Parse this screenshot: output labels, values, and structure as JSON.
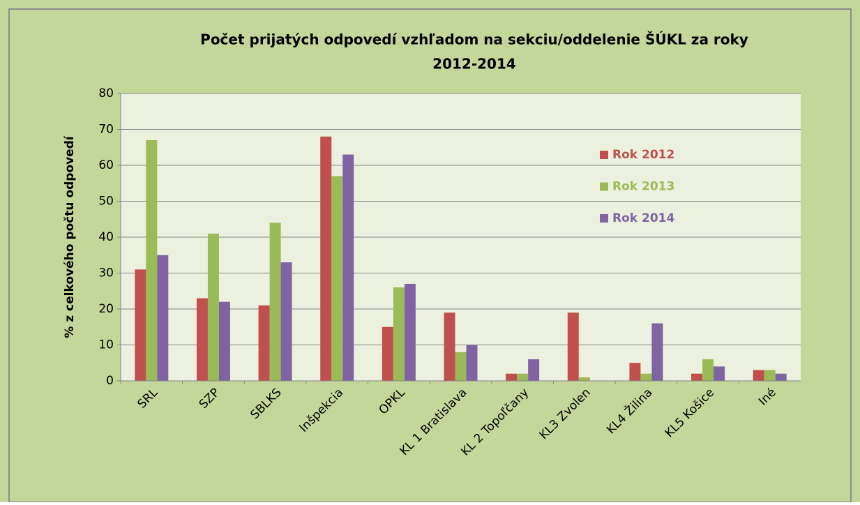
{
  "chart_data": {
    "type": "bar",
    "title": [
      "Počet prijatých odpovedí vzhľadom na sekciu/oddelenie ŠÚKL za roky",
      "2012-2014"
    ],
    "y_label": "% z celkového počtu odpovedí",
    "categories": [
      "SRL",
      "SZP",
      "SBLKS",
      "Inšpekcia",
      "OPKL",
      "KL 1 Bratislava",
      "KL 2 Topoľčany",
      "KL3 Zvolen",
      "KL4 Žilina",
      "KL5 Košice",
      "Iné"
    ],
    "series": [
      {
        "name": "Rok 2012",
        "color": "#c0504d",
        "values": [
          31,
          23,
          21,
          68,
          15,
          19,
          2,
          19,
          5,
          2,
          3
        ]
      },
      {
        "name": "Rok 2013",
        "color": "#9bbb59",
        "values": [
          67,
          41,
          44,
          57,
          26,
          8,
          2,
          1,
          2,
          6,
          3
        ]
      },
      {
        "name": "Rok 2014",
        "color": "#8064a2",
        "values": [
          35,
          22,
          33,
          63,
          27,
          10,
          6,
          0,
          16,
          4,
          2
        ]
      }
    ],
    "ylim": [
      0,
      80
    ],
    "yticks": [
      0,
      10,
      20,
      30,
      40,
      50,
      60,
      70,
      80
    ],
    "grid": true
  }
}
